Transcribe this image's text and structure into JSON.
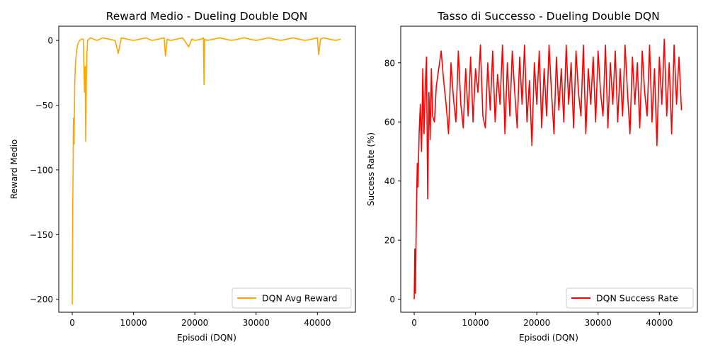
{
  "chart_data": [
    {
      "type": "line",
      "title": "Reward Medio - Dueling Double DQN",
      "xlabel": "Episodi (DQN)",
      "ylabel": "Reward Medio",
      "xlim": [
        -2200,
        46200
      ],
      "ylim": [
        -210,
        11
      ],
      "xticks": [
        0,
        10000,
        20000,
        30000,
        40000
      ],
      "yticks": [
        0,
        -50,
        -100,
        -150,
        -200
      ],
      "grid": false,
      "legend_position": "lower-right",
      "series": [
        {
          "name": "DQN Avg Reward",
          "color": "#ffa500",
          "x": [
            0,
            100,
            200,
            300,
            400,
            500,
            700,
            900,
            1200,
            1500,
            1800,
            2000,
            2100,
            2200,
            2300,
            2400,
            2500,
            2700,
            3000,
            3500,
            4000,
            5000,
            6000,
            7000,
            7500,
            8000,
            9000,
            10000,
            11000,
            12000,
            13000,
            14000,
            15000,
            15200,
            15500,
            16000,
            17000,
            18000,
            19000,
            19500,
            20000,
            21000,
            21400,
            21500,
            21600,
            22000,
            23000,
            24000,
            25000,
            26000,
            27000,
            28000,
            29000,
            30000,
            31000,
            32000,
            33000,
            34000,
            35000,
            36000,
            37000,
            38000,
            39000,
            40000,
            40200,
            40500,
            41000,
            42000,
            43000,
            43800
          ],
          "y": [
            -204,
            -120,
            -60,
            -80,
            -35,
            -20,
            -8,
            -3,
            0,
            1,
            1,
            -40,
            -20,
            -78,
            -30,
            -10,
            0,
            1,
            2,
            1,
            0,
            2,
            1,
            0,
            -10,
            2,
            1,
            0,
            1,
            2,
            0,
            1,
            2,
            -12,
            1,
            0,
            1,
            2,
            -5,
            1,
            0,
            1,
            2,
            -34,
            1,
            0,
            1,
            2,
            1,
            0,
            1,
            2,
            1,
            0,
            1,
            2,
            1,
            0,
            1,
            2,
            1,
            0,
            1,
            2,
            -11,
            1,
            2,
            1,
            0,
            1
          ]
        }
      ]
    },
    {
      "type": "line",
      "title": "Tasso di Successo - Dueling Double DQN",
      "xlabel": "Episodi (DQN)",
      "ylabel": "Success Rate (%)",
      "xlim": [
        -2200,
        46200
      ],
      "ylim": [
        -4.4,
        92.4
      ],
      "xticks": [
        0,
        10000,
        20000,
        30000,
        40000
      ],
      "yticks": [
        0,
        20,
        40,
        60,
        80
      ],
      "grid": false,
      "legend_position": "lower-right",
      "series": [
        {
          "name": "DQN Success Rate",
          "color": "#ff0000",
          "x": [
            0,
            100,
            200,
            300,
            400,
            500,
            600,
            800,
            1000,
            1200,
            1400,
            1600,
            1800,
            2000,
            2200,
            2400,
            2600,
            2800,
            3000,
            3300,
            3600,
            4000,
            4400,
            4800,
            5200,
            5600,
            6000,
            6400,
            6800,
            7200,
            7600,
            8000,
            8400,
            8800,
            9200,
            9600,
            10000,
            10400,
            10800,
            11200,
            11600,
            12000,
            12400,
            12800,
            13200,
            13600,
            14000,
            14400,
            14800,
            15200,
            15600,
            16000,
            16400,
            16800,
            17200,
            17600,
            18000,
            18400,
            18800,
            19200,
            19600,
            20000,
            20400,
            20800,
            21200,
            21600,
            22000,
            22400,
            22800,
            23200,
            23600,
            24000,
            24400,
            24800,
            25200,
            25600,
            26000,
            26400,
            26800,
            27200,
            27600,
            28000,
            28400,
            28800,
            29200,
            29600,
            30000,
            30400,
            30800,
            31200,
            31600,
            32000,
            32400,
            32800,
            33200,
            33600,
            34000,
            34400,
            34800,
            35200,
            35600,
            36000,
            36400,
            36800,
            37200,
            37600,
            38000,
            38400,
            38800,
            39200,
            39600,
            40000,
            40400,
            40800,
            41200,
            41600,
            42000,
            42400,
            42800,
            43200,
            43600
          ],
          "y": [
            0,
            17,
            2,
            20,
            34,
            46,
            38,
            56,
            66,
            50,
            78,
            56,
            72,
            82,
            34,
            70,
            54,
            78,
            62,
            60,
            72,
            78,
            84,
            74,
            66,
            56,
            80,
            68,
            60,
            84,
            66,
            58,
            78,
            62,
            82,
            60,
            78,
            70,
            86,
            62,
            58,
            80,
            64,
            84,
            60,
            76,
            66,
            86,
            56,
            80,
            62,
            84,
            70,
            58,
            82,
            66,
            86,
            60,
            74,
            52,
            80,
            66,
            84,
            58,
            78,
            62,
            86,
            70,
            56,
            82,
            64,
            78,
            60,
            86,
            66,
            80,
            58,
            84,
            70,
            62,
            86,
            56,
            78,
            66,
            82,
            60,
            84,
            70,
            62,
            86,
            58,
            80,
            66,
            84,
            60,
            78,
            62,
            86,
            70,
            56,
            82,
            66,
            80,
            58,
            84,
            70,
            62,
            86,
            60,
            78,
            52,
            82,
            66,
            88,
            62,
            80,
            56,
            86,
            66,
            82,
            64
          ]
        }
      ]
    }
  ]
}
